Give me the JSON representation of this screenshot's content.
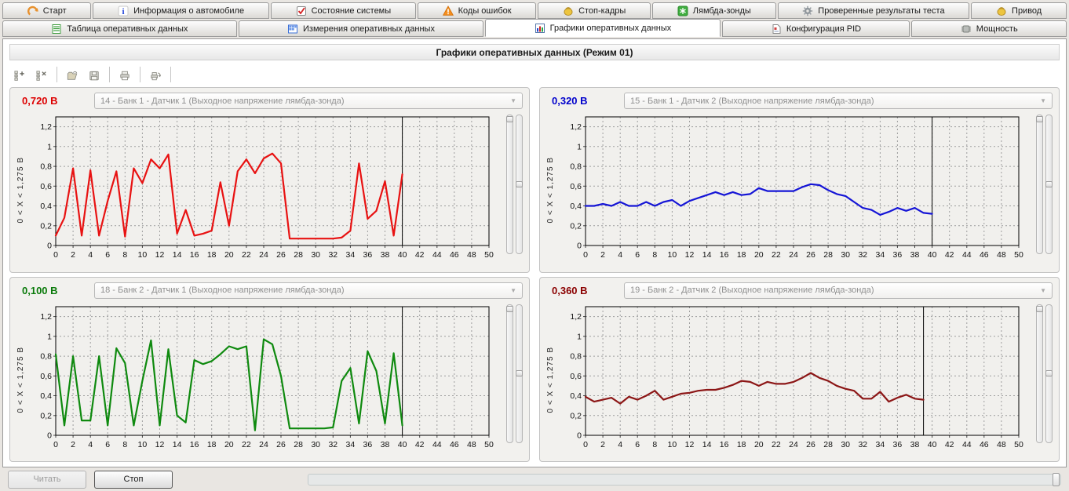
{
  "title": "Графики оперативных данных (Режим 01)",
  "tabs_primary": [
    {
      "name": "tab-start",
      "label": "Старт",
      "icon": "start-icon"
    },
    {
      "name": "tab-vehicle-info",
      "label": "Информация о автомобиле",
      "icon": "vehicle-info-icon"
    },
    {
      "name": "tab-system-status",
      "label": "Состояние системы",
      "icon": "system-status-icon"
    },
    {
      "name": "tab-error-codes",
      "label": "Коды ошибок",
      "icon": "error-codes-icon"
    },
    {
      "name": "tab-freeze-frames",
      "label": "Стоп-кадры",
      "icon": "freeze-frames-icon"
    },
    {
      "name": "tab-lambda-sensors",
      "label": "Лямбда-зонды",
      "icon": "lambda-sensors-icon"
    },
    {
      "name": "tab-test-results",
      "label": "Проверенные результаты теста",
      "icon": "test-results-icon"
    },
    {
      "name": "tab-actuator-drive",
      "label": "Привод",
      "icon": "actuator-icon"
    }
  ],
  "tabs_secondary": [
    {
      "name": "tab-live-data-table",
      "label": "Таблица оперативных данных",
      "icon": "table-icon",
      "active": false
    },
    {
      "name": "tab-live-data-measurements",
      "label": "Измерения оперативных данных",
      "icon": "measurements-icon",
      "active": false
    },
    {
      "name": "tab-live-data-graphs",
      "label": "Графики оперативных данных",
      "icon": "graphs-icon",
      "active": true
    },
    {
      "name": "tab-pid-configuration",
      "label": "Конфигурация PID",
      "icon": "pid-config-icon",
      "active": false
    },
    {
      "name": "tab-power",
      "label": "Мощность",
      "icon": "power-chip-icon",
      "active": false
    }
  ],
  "toolbar": [
    {
      "name": "add-graph-button",
      "icon": "add-graph-icon",
      "sep_after": false
    },
    {
      "name": "remove-graph-button",
      "icon": "remove-graph-icon",
      "sep_after": true
    },
    {
      "name": "open-button",
      "icon": "open-folder-icon",
      "sep_after": false
    },
    {
      "name": "save-button",
      "icon": "save-icon",
      "sep_after": true
    },
    {
      "name": "print-button",
      "icon": "printer-icon",
      "sep_after": true
    },
    {
      "name": "print-preview-button",
      "icon": "print-preview-icon",
      "sep_after": true
    }
  ],
  "bottom": {
    "read_label": "Читать",
    "stop_label": "Стоп"
  },
  "chart_data": [
    {
      "type": "line",
      "value_label": "0,720 В",
      "value_color": "#dd0000",
      "color": "#e81212",
      "selector_label": "14 - Банк 1 - Датчик 1 (Выходное напряжение лямбда-зонда)",
      "ylabel": "0 < X < 1,275 В",
      "yticks": [
        "0",
        "0,2",
        "0,4",
        "0,6",
        "0,8",
        "1",
        "1,2"
      ],
      "ytick_values": [
        0,
        0.2,
        0.4,
        0.6,
        0.8,
        1,
        1.2
      ],
      "xlim": [
        0,
        50
      ],
      "ylim": [
        0,
        1.3
      ],
      "xtick_step": 2,
      "grid": true,
      "cursor_x": 40,
      "values": [
        0.1,
        0.28,
        0.78,
        0.1,
        0.76,
        0.1,
        0.45,
        0.75,
        0.09,
        0.78,
        0.63,
        0.87,
        0.78,
        0.92,
        0.12,
        0.36,
        0.1,
        0.12,
        0.15,
        0.64,
        0.2,
        0.75,
        0.87,
        0.73,
        0.88,
        0.93,
        0.83,
        0.07,
        0.07,
        0.07,
        0.07,
        0.07,
        0.07,
        0.08,
        0.15,
        0.83,
        0.27,
        0.35,
        0.65,
        0.1,
        0.72
      ]
    },
    {
      "type": "line",
      "value_label": "0,320 В",
      "value_color": "#0000cc",
      "color": "#1515d6",
      "selector_label": "15 - Банк 1 - Датчик 2 (Выходное напряжение лямбда-зонда)",
      "ylabel": "0 < X < 1,275 В",
      "yticks": [
        "0",
        "0,2",
        "0,4",
        "0,6",
        "0,8",
        "1",
        "1,2"
      ],
      "ytick_values": [
        0,
        0.2,
        0.4,
        0.6,
        0.8,
        1,
        1.2
      ],
      "xlim": [
        0,
        50
      ],
      "ylim": [
        0,
        1.3
      ],
      "xtick_step": 2,
      "grid": true,
      "cursor_x": 40,
      "values": [
        0.4,
        0.4,
        0.42,
        0.4,
        0.44,
        0.4,
        0.4,
        0.44,
        0.4,
        0.44,
        0.46,
        0.4,
        0.45,
        0.48,
        0.51,
        0.54,
        0.51,
        0.54,
        0.51,
        0.52,
        0.58,
        0.55,
        0.55,
        0.55,
        0.55,
        0.59,
        0.62,
        0.61,
        0.56,
        0.52,
        0.5,
        0.44,
        0.38,
        0.36,
        0.31,
        0.34,
        0.38,
        0.35,
        0.38,
        0.33,
        0.32
      ]
    },
    {
      "type": "line",
      "value_label": "0,100 В",
      "value_color": "#0a7a0a",
      "color": "#0f8a0f",
      "selector_label": "18 - Банк 2 - Датчик 1 (Выходное напряжение лямбда-зонда)",
      "ylabel": "0 < X < 1,275 В",
      "yticks": [
        "0",
        "0,2",
        "0,4",
        "0,6",
        "0,8",
        "1",
        "1,2"
      ],
      "ytick_values": [
        0,
        0.2,
        0.4,
        0.6,
        0.8,
        1,
        1.2
      ],
      "xlim": [
        0,
        50
      ],
      "ylim": [
        0,
        1.3
      ],
      "xtick_step": 2,
      "grid": true,
      "cursor_x": 40,
      "values": [
        0.82,
        0.1,
        0.8,
        0.15,
        0.15,
        0.8,
        0.1,
        0.88,
        0.73,
        0.1,
        0.55,
        0.96,
        0.1,
        0.87,
        0.2,
        0.13,
        0.76,
        0.72,
        0.75,
        0.82,
        0.9,
        0.87,
        0.9,
        0.05,
        0.97,
        0.92,
        0.6,
        0.07,
        0.07,
        0.07,
        0.07,
        0.07,
        0.08,
        0.55,
        0.68,
        0.12,
        0.85,
        0.65,
        0.12,
        0.83,
        0.1
      ]
    },
    {
      "type": "line",
      "value_label": "0,360 В",
      "value_color": "#8b0000",
      "color": "#8c1616",
      "selector_label": "19 - Банк 2 - Датчик 2 (Выходное напряжение лямбда-зонда)",
      "ylabel": "0 < X < 1,275 В",
      "yticks": [
        "0",
        "0,2",
        "0,4",
        "0,6",
        "0,8",
        "1",
        "1,2"
      ],
      "ytick_values": [
        0,
        0.2,
        0.4,
        0.6,
        0.8,
        1,
        1.2
      ],
      "xlim": [
        0,
        50
      ],
      "ylim": [
        0,
        1.3
      ],
      "xtick_step": 2,
      "grid": true,
      "cursor_x": 39,
      "values": [
        0.39,
        0.34,
        0.36,
        0.38,
        0.32,
        0.39,
        0.36,
        0.4,
        0.45,
        0.36,
        0.39,
        0.42,
        0.43,
        0.45,
        0.46,
        0.46,
        0.48,
        0.51,
        0.55,
        0.54,
        0.5,
        0.54,
        0.52,
        0.52,
        0.54,
        0.58,
        0.63,
        0.58,
        0.55,
        0.5,
        0.47,
        0.45,
        0.37,
        0.37,
        0.44,
        0.34,
        0.38,
        0.41,
        0.37,
        0.36
      ]
    }
  ]
}
